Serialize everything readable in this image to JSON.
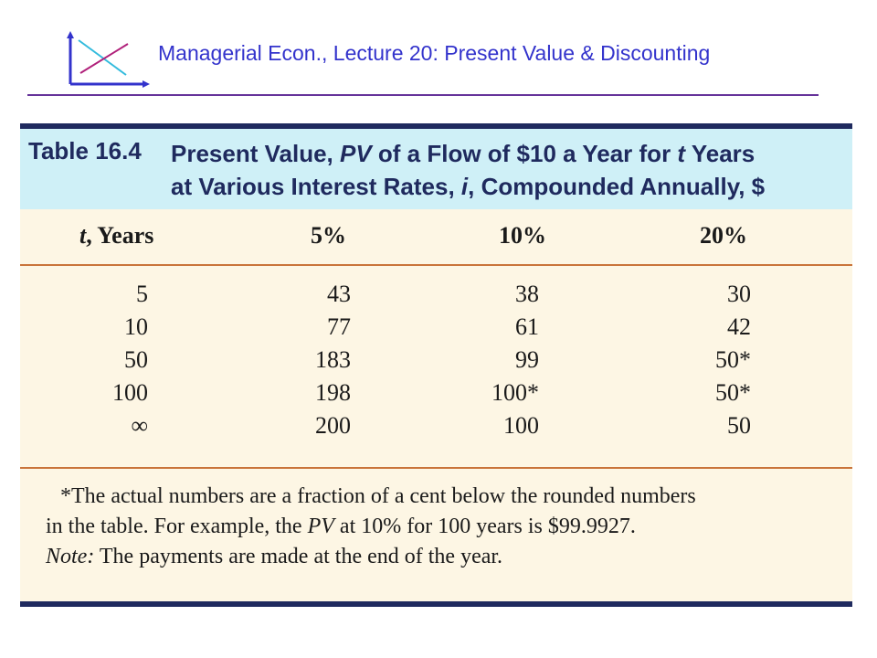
{
  "header": {
    "title": "Managerial Econ., Lecture 20:  Present Value & Discounting",
    "logo_icon": "axes-cross-logo-icon"
  },
  "table": {
    "number": "Table 16.4",
    "title_line1_pre": "Present Value, ",
    "title_line1_em": "PV",
    "title_line1_post": " of a Flow of $10 a Year for ",
    "title_line1_t": "t",
    "title_line1_end": " Years",
    "title_line2_pre": "at Various Interest Rates, ",
    "title_line2_em": "i",
    "title_line2_post": ", Compounded Annually, $",
    "columns": {
      "years_var": "t",
      "years_label": ", Years",
      "rate_5": "5%",
      "rate_10": "10%",
      "rate_20": "20%"
    },
    "rows": [
      {
        "t": "5",
        "r5": "43",
        "r10": "38",
        "r20": "30"
      },
      {
        "t": "10",
        "r5": "77",
        "r10": "61",
        "r20": "42"
      },
      {
        "t": "50",
        "r5": "183",
        "r10": "99",
        "r20": "50*"
      },
      {
        "t": "100",
        "r5": "198",
        "r10": "100*",
        "r20": "50*"
      },
      {
        "t": "∞",
        "r5": "200",
        "r10": "100",
        "r20": "50"
      }
    ],
    "footnote_line1": "*The actual numbers are a fraction of a cent below the rounded numbers",
    "footnote_line2_pre": "in the table. For example, the ",
    "footnote_line2_em": "PV",
    "footnote_line2_post": " at 10% for 100 years is $99.9927.",
    "note_label": "Note:",
    "note_text": " The payments are made at the end of the year."
  },
  "colors": {
    "title": "#3333cc",
    "rule": "#66339a",
    "caption_bg": "#cff0f7",
    "caption_text": "#1f2a5e",
    "table_bg": "#fdf6e4",
    "divider": "#c9743a"
  }
}
